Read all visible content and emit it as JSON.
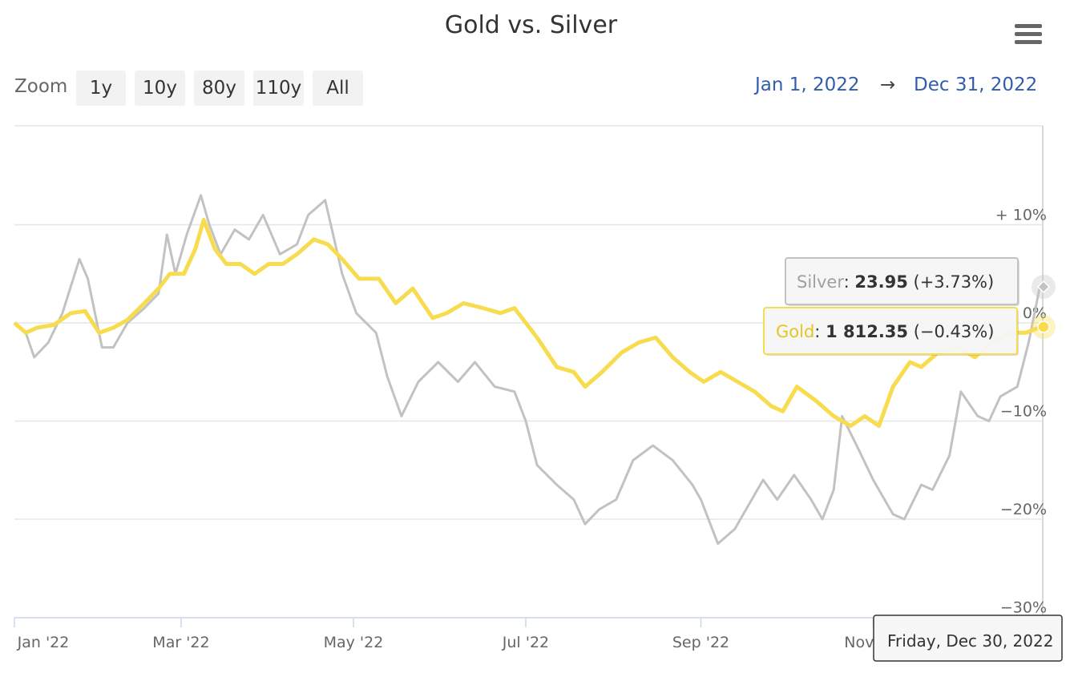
{
  "title": "Gold vs. Silver",
  "menu": {
    "icon": "hamburger-menu-icon"
  },
  "zoom": {
    "label": "Zoom",
    "buttons": [
      "1y",
      "10y",
      "80y",
      "110y",
      "All"
    ]
  },
  "range": {
    "from": "Jan 1, 2022",
    "arrow": "→",
    "to": "Dec 31, 2022"
  },
  "colors": {
    "gold": "#f7dc4f",
    "silver": "#c2c2c2",
    "grid": "#e6e6e6",
    "range": "#335cad"
  },
  "tooltips": {
    "silver": {
      "series": "Silver",
      "value": "23.95",
      "change": "(+3.73%)"
    },
    "gold": {
      "series": "Gold",
      "value": "1 812.35",
      "change": "(−0.43%)"
    },
    "date": "Friday, Dec 30, 2022"
  },
  "chart_data": {
    "type": "line",
    "x_ticks": [
      "Jan '22",
      "Mar '22",
      "May '22",
      "Jul '22",
      "Sep '22",
      "Nov '22"
    ],
    "y_ticks": [
      "+ 10%",
      "0%",
      "−10%",
      "−20%",
      "−30%"
    ],
    "ylim": [
      -30,
      20
    ],
    "xlim": [
      "2022-01-01",
      "2022-12-31"
    ],
    "grid": true,
    "series": [
      {
        "name": "Silver",
        "points": [
          [
            "2022-01-01",
            0
          ],
          [
            "2022-01-05",
            -1
          ],
          [
            "2022-01-08",
            -3.5
          ],
          [
            "2022-01-13",
            -2
          ],
          [
            "2022-01-18",
            1
          ],
          [
            "2022-01-24",
            6.5
          ],
          [
            "2022-01-27",
            4.5
          ],
          [
            "2022-02-01",
            -2.5
          ],
          [
            "2022-02-05",
            -2.5
          ],
          [
            "2022-02-10",
            0
          ],
          [
            "2022-02-16",
            1.5
          ],
          [
            "2022-02-21",
            3
          ],
          [
            "2022-02-24",
            9
          ],
          [
            "2022-02-27",
            5
          ],
          [
            "2022-03-03",
            9
          ],
          [
            "2022-03-08",
            13
          ],
          [
            "2022-03-11",
            10
          ],
          [
            "2022-03-15",
            7
          ],
          [
            "2022-03-20",
            9.5
          ],
          [
            "2022-03-25",
            8.5
          ],
          [
            "2022-03-30",
            11
          ],
          [
            "2022-04-05",
            7
          ],
          [
            "2022-04-11",
            8
          ],
          [
            "2022-04-15",
            11
          ],
          [
            "2022-04-21",
            12.5
          ],
          [
            "2022-04-27",
            5
          ],
          [
            "2022-05-02",
            1
          ],
          [
            "2022-05-09",
            -1
          ],
          [
            "2022-05-13",
            -5.5
          ],
          [
            "2022-05-18",
            -9.5
          ],
          [
            "2022-05-24",
            -6
          ],
          [
            "2022-05-31",
            -4
          ],
          [
            "2022-06-07",
            -6
          ],
          [
            "2022-06-13",
            -4
          ],
          [
            "2022-06-20",
            -6.5
          ],
          [
            "2022-06-27",
            -7
          ],
          [
            "2022-07-01",
            -10
          ],
          [
            "2022-07-05",
            -14.5
          ],
          [
            "2022-07-12",
            -16.5
          ],
          [
            "2022-07-18",
            -18
          ],
          [
            "2022-07-22",
            -20.5
          ],
          [
            "2022-07-27",
            -19
          ],
          [
            "2022-08-02",
            -18
          ],
          [
            "2022-08-08",
            -14
          ],
          [
            "2022-08-15",
            -12.5
          ],
          [
            "2022-08-22",
            -14
          ],
          [
            "2022-08-29",
            -16.5
          ],
          [
            "2022-09-01",
            -18
          ],
          [
            "2022-09-07",
            -22.5
          ],
          [
            "2022-09-13",
            -21
          ],
          [
            "2022-09-18",
            -18.5
          ],
          [
            "2022-09-23",
            -16
          ],
          [
            "2022-09-28",
            -18
          ],
          [
            "2022-10-04",
            -15.5
          ],
          [
            "2022-10-10",
            -18
          ],
          [
            "2022-10-14",
            -20
          ],
          [
            "2022-10-18",
            -17
          ],
          [
            "2022-10-21",
            -9.5
          ],
          [
            "2022-10-27",
            -13
          ],
          [
            "2022-11-01",
            -16
          ],
          [
            "2022-11-08",
            -19.5
          ],
          [
            "2022-11-12",
            -20
          ],
          [
            "2022-11-18",
            -16.5
          ],
          [
            "2022-11-22",
            -17
          ],
          [
            "2022-11-28",
            -13.5
          ],
          [
            "2022-12-02",
            -7
          ],
          [
            "2022-12-08",
            -9.5
          ],
          [
            "2022-12-12",
            -10
          ],
          [
            "2022-12-16",
            -7.5
          ],
          [
            "2022-12-22",
            -6.5
          ],
          [
            "2022-12-26",
            -2
          ],
          [
            "2022-12-30",
            3.73
          ]
        ]
      },
      {
        "name": "Gold",
        "points": [
          [
            "2022-01-01",
            0
          ],
          [
            "2022-01-05",
            -1
          ],
          [
            "2022-01-09",
            -0.5
          ],
          [
            "2022-01-15",
            -0.2
          ],
          [
            "2022-01-21",
            1
          ],
          [
            "2022-01-26",
            1.2
          ],
          [
            "2022-01-31",
            -1
          ],
          [
            "2022-02-05",
            -0.5
          ],
          [
            "2022-02-10",
            0.3
          ],
          [
            "2022-02-16",
            2
          ],
          [
            "2022-02-21",
            3.5
          ],
          [
            "2022-02-25",
            5
          ],
          [
            "2022-03-02",
            5
          ],
          [
            "2022-03-06",
            7.5
          ],
          [
            "2022-03-09",
            10.5
          ],
          [
            "2022-03-13",
            7.5
          ],
          [
            "2022-03-17",
            6
          ],
          [
            "2022-03-22",
            6
          ],
          [
            "2022-03-27",
            5
          ],
          [
            "2022-04-01",
            6
          ],
          [
            "2022-04-06",
            6
          ],
          [
            "2022-04-11",
            7
          ],
          [
            "2022-04-17",
            8.5
          ],
          [
            "2022-04-22",
            8
          ],
          [
            "2022-04-27",
            6.5
          ],
          [
            "2022-05-03",
            4.5
          ],
          [
            "2022-05-10",
            4.5
          ],
          [
            "2022-05-16",
            2
          ],
          [
            "2022-05-22",
            3.5
          ],
          [
            "2022-05-29",
            0.5
          ],
          [
            "2022-06-03",
            1
          ],
          [
            "2022-06-09",
            2
          ],
          [
            "2022-06-16",
            1.5
          ],
          [
            "2022-06-22",
            1
          ],
          [
            "2022-06-27",
            1.5
          ],
          [
            "2022-07-01",
            0
          ],
          [
            "2022-07-05",
            -1.5
          ],
          [
            "2022-07-12",
            -4.5
          ],
          [
            "2022-07-18",
            -5
          ],
          [
            "2022-07-22",
            -6.5
          ],
          [
            "2022-07-28",
            -5
          ],
          [
            "2022-08-04",
            -3
          ],
          [
            "2022-08-10",
            -2
          ],
          [
            "2022-08-16",
            -1.5
          ],
          [
            "2022-08-22",
            -3.5
          ],
          [
            "2022-08-28",
            -5
          ],
          [
            "2022-09-02",
            -6
          ],
          [
            "2022-09-08",
            -5
          ],
          [
            "2022-09-14",
            -6
          ],
          [
            "2022-09-20",
            -7
          ],
          [
            "2022-09-26",
            -8.5
          ],
          [
            "2022-09-30",
            -9
          ],
          [
            "2022-10-05",
            -6.5
          ],
          [
            "2022-10-12",
            -8
          ],
          [
            "2022-10-18",
            -9.5
          ],
          [
            "2022-10-24",
            -10.5
          ],
          [
            "2022-10-29",
            -9.5
          ],
          [
            "2022-11-03",
            -10.5
          ],
          [
            "2022-11-08",
            -6.5
          ],
          [
            "2022-11-14",
            -4
          ],
          [
            "2022-11-18",
            -4.5
          ],
          [
            "2022-11-24",
            -3
          ],
          [
            "2022-12-01",
            -2.5
          ],
          [
            "2022-12-07",
            -3.5
          ],
          [
            "2022-12-13",
            -2
          ],
          [
            "2022-12-20",
            -1
          ],
          [
            "2022-12-25",
            -1
          ],
          [
            "2022-12-30",
            -0.43
          ]
        ]
      }
    ]
  }
}
